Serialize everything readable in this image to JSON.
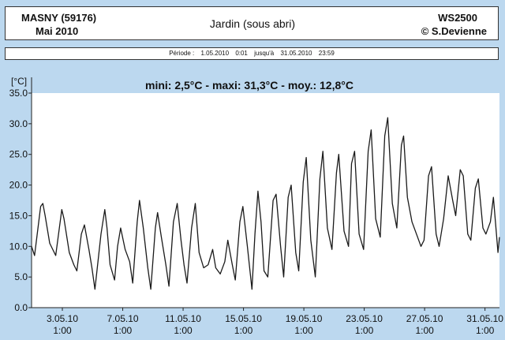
{
  "header": {
    "station": "MASNY (59176)",
    "month": "Mai  2010",
    "location": "Jardin (sous abri)",
    "device": "WS2500",
    "author": "© S.Devienne"
  },
  "period": {
    "label": "Période :",
    "start": "1.05.2010",
    "start_time": "0:01",
    "until": "jusqu'à",
    "end": "31.05.2010",
    "end_time": "23:59"
  },
  "colors": {
    "background": "#bcd8ef",
    "plot_background": "#ffffff",
    "line": "#1a1a1a"
  },
  "chart_data": {
    "type": "line",
    "title": "mini: 2,5°C - maxi: 31,3°C - moy.: 12,8°C",
    "ylabel": "[°C]",
    "xlabel": "",
    "ylim": [
      0,
      35
    ],
    "yticks": [
      "0.0",
      "5.0",
      "10.0",
      "15.0",
      "20.0",
      "25.0",
      "30.0",
      "35.0"
    ],
    "xlim_days": [
      0,
      31
    ],
    "xticks": [
      {
        "day": 2.04,
        "date": "3.05.10",
        "time": "1:00"
      },
      {
        "day": 6.04,
        "date": "7.05.10",
        "time": "1:00"
      },
      {
        "day": 10.04,
        "date": "11.05.10",
        "time": "1:00"
      },
      {
        "day": 14.04,
        "date": "15.05.10",
        "time": "1:00"
      },
      {
        "day": 18.04,
        "date": "19.05.10",
        "time": "1:00"
      },
      {
        "day": 22.04,
        "date": "23.05.10",
        "time": "1:00"
      },
      {
        "day": 26.04,
        "date": "27.05.10",
        "time": "1:00"
      },
      {
        "day": 30.04,
        "date": "31.05.10",
        "time": "1:00"
      }
    ],
    "grid": false,
    "series": [
      {
        "values": [
          [
            0.0,
            10.0
          ],
          [
            0.2,
            8.5
          ],
          [
            0.6,
            16.5
          ],
          [
            0.75,
            17.0
          ],
          [
            0.9,
            15.0
          ],
          [
            1.2,
            10.5
          ],
          [
            1.6,
            8.5
          ],
          [
            2.0,
            16.0
          ],
          [
            2.15,
            14.5
          ],
          [
            2.5,
            9.0
          ],
          [
            2.8,
            7.0
          ],
          [
            3.0,
            6.0
          ],
          [
            3.3,
            12.0
          ],
          [
            3.5,
            13.5
          ],
          [
            3.8,
            9.5
          ],
          [
            4.0,
            6.5
          ],
          [
            4.2,
            3.0
          ],
          [
            4.6,
            12.0
          ],
          [
            4.85,
            16.0
          ],
          [
            5.0,
            13.0
          ],
          [
            5.2,
            7.0
          ],
          [
            5.5,
            4.5
          ],
          [
            5.7,
            10.0
          ],
          [
            5.9,
            13.0
          ],
          [
            6.2,
            9.5
          ],
          [
            6.5,
            7.5
          ],
          [
            6.7,
            4.0
          ],
          [
            7.0,
            14.0
          ],
          [
            7.15,
            17.5
          ],
          [
            7.4,
            13.0
          ],
          [
            7.7,
            6.5
          ],
          [
            7.9,
            3.0
          ],
          [
            8.2,
            13.0
          ],
          [
            8.35,
            15.5
          ],
          [
            8.6,
            11.5
          ],
          [
            8.9,
            7.0
          ],
          [
            9.1,
            3.5
          ],
          [
            9.4,
            14.0
          ],
          [
            9.65,
            17.0
          ],
          [
            9.9,
            11.0
          ],
          [
            10.1,
            7.0
          ],
          [
            10.3,
            4.0
          ],
          [
            10.6,
            13.0
          ],
          [
            10.85,
            17.0
          ],
          [
            11.1,
            9.0
          ],
          [
            11.4,
            6.5
          ],
          [
            11.7,
            7.0
          ],
          [
            12.0,
            9.5
          ],
          [
            12.2,
            6.5
          ],
          [
            12.5,
            5.5
          ],
          [
            12.8,
            7.5
          ],
          [
            13.0,
            11.0
          ],
          [
            13.3,
            7.0
          ],
          [
            13.5,
            4.5
          ],
          [
            13.8,
            14.0
          ],
          [
            14.0,
            16.5
          ],
          [
            14.3,
            10.0
          ],
          [
            14.6,
            3.0
          ],
          [
            14.8,
            12.0
          ],
          [
            15.0,
            19.0
          ],
          [
            15.2,
            14.0
          ],
          [
            15.4,
            6.0
          ],
          [
            15.65,
            5.0
          ],
          [
            16.0,
            17.5
          ],
          [
            16.2,
            18.5
          ],
          [
            16.5,
            10.0
          ],
          [
            16.7,
            5.0
          ],
          [
            17.0,
            18.0
          ],
          [
            17.2,
            20.0
          ],
          [
            17.5,
            9.0
          ],
          [
            17.7,
            6.0
          ],
          [
            18.0,
            20.5
          ],
          [
            18.2,
            24.5
          ],
          [
            18.5,
            11.0
          ],
          [
            18.8,
            5.0
          ],
          [
            19.1,
            21.0
          ],
          [
            19.3,
            25.5
          ],
          [
            19.6,
            13.0
          ],
          [
            19.9,
            9.5
          ],
          [
            20.2,
            22.0
          ],
          [
            20.35,
            25.0
          ],
          [
            20.7,
            12.5
          ],
          [
            21.0,
            10.0
          ],
          [
            21.2,
            23.5
          ],
          [
            21.4,
            25.5
          ],
          [
            21.7,
            12.0
          ],
          [
            22.0,
            9.5
          ],
          [
            22.3,
            25.5
          ],
          [
            22.5,
            29.0
          ],
          [
            22.8,
            14.5
          ],
          [
            23.1,
            11.5
          ],
          [
            23.4,
            28.0
          ],
          [
            23.6,
            31.0
          ],
          [
            23.9,
            17.0
          ],
          [
            24.2,
            13.0
          ],
          [
            24.5,
            26.5
          ],
          [
            24.65,
            28.0
          ],
          [
            24.9,
            18.0
          ],
          [
            25.2,
            14.0
          ],
          [
            25.5,
            12.0
          ],
          [
            25.8,
            10.0
          ],
          [
            26.0,
            11.0
          ],
          [
            26.3,
            21.5
          ],
          [
            26.5,
            23.0
          ],
          [
            26.8,
            12.0
          ],
          [
            27.0,
            10.0
          ],
          [
            27.3,
            14.5
          ],
          [
            27.6,
            21.5
          ],
          [
            27.9,
            17.5
          ],
          [
            28.1,
            15.0
          ],
          [
            28.4,
            22.5
          ],
          [
            28.6,
            21.5
          ],
          [
            28.9,
            12.0
          ],
          [
            29.1,
            11.0
          ],
          [
            29.4,
            19.5
          ],
          [
            29.6,
            21.0
          ],
          [
            29.9,
            13.0
          ],
          [
            30.1,
            12.0
          ],
          [
            30.4,
            14.0
          ],
          [
            30.6,
            18.0
          ],
          [
            30.9,
            9.0
          ],
          [
            31.0,
            11.5
          ]
        ]
      }
    ]
  }
}
